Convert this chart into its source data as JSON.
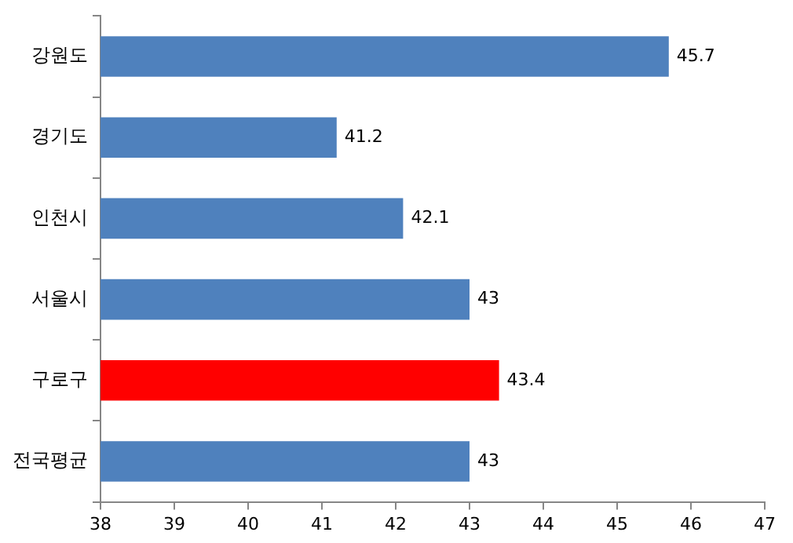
{
  "chart_data": {
    "type": "bar",
    "orientation": "horizontal",
    "categories": [
      "강원도",
      "경기도",
      "인천시",
      "서울시",
      "구로구",
      "전국평균"
    ],
    "values": [
      45.7,
      41.2,
      42.1,
      43,
      43.4,
      43
    ],
    "colors": [
      "#4f81bd",
      "#4f81bd",
      "#4f81bd",
      "#4f81bd",
      "#ff0000",
      "#4f81bd"
    ],
    "xlim": [
      38,
      47
    ],
    "xticks": [
      38,
      39,
      40,
      41,
      42,
      43,
      44,
      45,
      46,
      47
    ],
    "grid": false,
    "legend": false,
    "data_labels": true
  }
}
